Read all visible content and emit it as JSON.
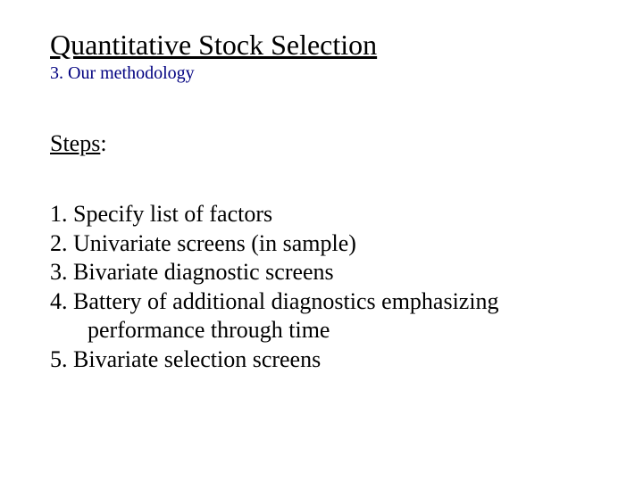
{
  "title": "Quantitative Stock Selection",
  "subtitle": "3. Our methodology",
  "steps_label": "Steps",
  "steps_colon": ":",
  "items": {
    "i1": "1. Specify list of factors",
    "i2": "2. Univariate screens (in sample)",
    "i3": "3. Bivariate diagnostic screens",
    "i4a": "4. Battery of additional diagnostics emphasizing",
    "i4b": "performance through time",
    "i5": "5. Bivariate selection screens"
  },
  "colors": {
    "text": "#000000",
    "subtitle": "#000080",
    "background": "#ffffff"
  },
  "typography": {
    "title_fontsize": 32,
    "subtitle_fontsize": 20,
    "heading_fontsize": 26,
    "body_fontsize": 26,
    "font_family": "Times New Roman"
  }
}
